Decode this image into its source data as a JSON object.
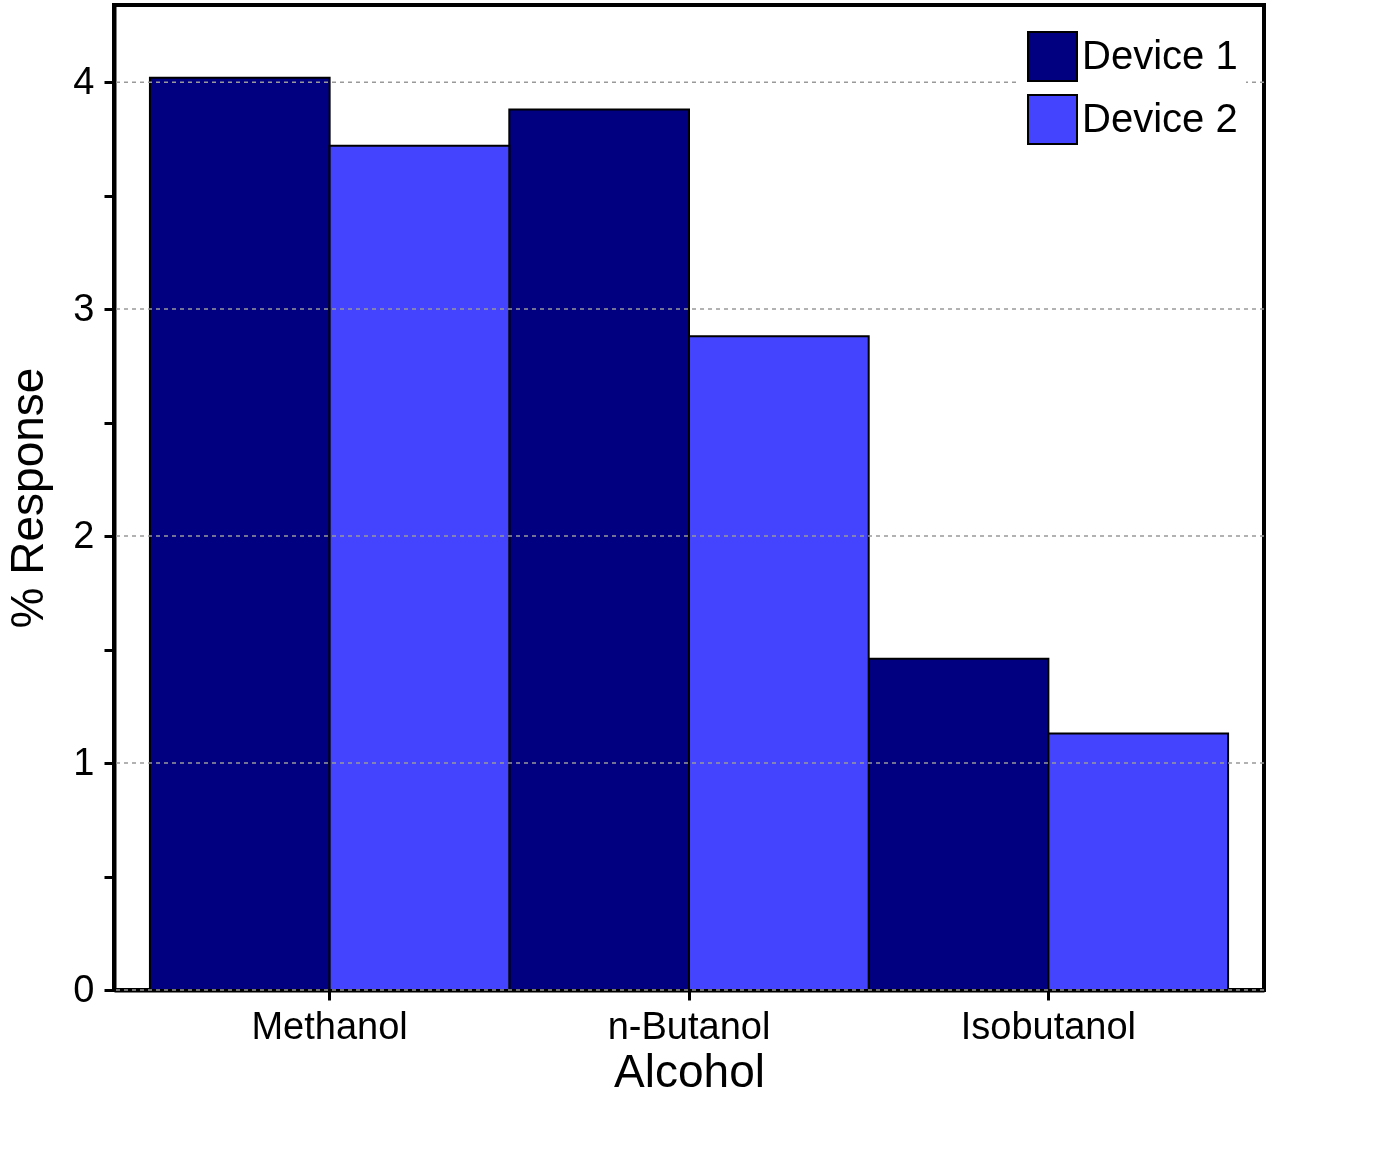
{
  "chart_data": {
    "type": "bar",
    "xlabel": "Alcohol",
    "ylabel": "% Response",
    "categories": [
      "Methanol",
      "n-Butanol",
      "Isobutanol"
    ],
    "series": [
      {
        "name": "Device 1",
        "color": "#000080",
        "values": [
          4.02,
          3.88,
          1.46
        ]
      },
      {
        "name": "Device 2",
        "color": "#4444ff",
        "values": [
          3.72,
          2.88,
          1.13
        ]
      }
    ],
    "ylim": [
      0,
      4.34
    ],
    "yticks": [
      0,
      {
        "value": 0.5,
        "label": null
      },
      1,
      {
        "value": 1.5,
        "label": null
      },
      2,
      {
        "value": 2.5,
        "label": null
      },
      3,
      {
        "value": 3.5,
        "label": null
      },
      4
    ],
    "grid": "y",
    "legend": "top right"
  }
}
